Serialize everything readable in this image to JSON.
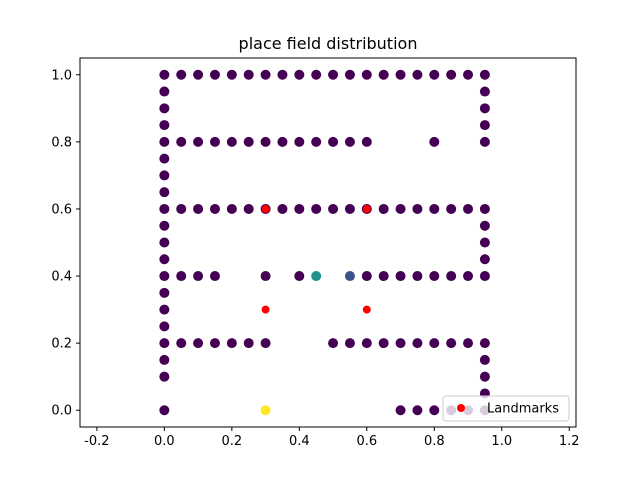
{
  "chart_data": {
    "type": "scatter",
    "title": "place field distribution",
    "xlabel": "",
    "ylabel": "",
    "xlim": [
      -0.25,
      1.22
    ],
    "ylim": [
      -0.05,
      1.05
    ],
    "xticks": [
      -0.2,
      0.0,
      0.2,
      0.4,
      0.6,
      0.8,
      1.0,
      1.2
    ],
    "yticks": [
      0.0,
      0.2,
      0.4,
      0.6,
      0.8,
      1.0
    ],
    "grid": false,
    "legend": {
      "position": "lower right",
      "entries": [
        "Landmarks"
      ]
    },
    "colors": {
      "field_low": "#440154",
      "field_mid": "#3b528b",
      "field_teal": "#21918c",
      "field_yellow": "#fde725",
      "landmark": "#ff0000"
    },
    "series": [
      {
        "marker": "place-field",
        "color_key": "field_low",
        "points": [
          [
            0.0,
            1.0
          ],
          [
            0.05,
            1.0
          ],
          [
            0.1,
            1.0
          ],
          [
            0.15,
            1.0
          ],
          [
            0.2,
            1.0
          ],
          [
            0.25,
            1.0
          ],
          [
            0.3,
            1.0
          ],
          [
            0.35,
            1.0
          ],
          [
            0.4,
            1.0
          ],
          [
            0.45,
            1.0
          ],
          [
            0.5,
            1.0
          ],
          [
            0.55,
            1.0
          ],
          [
            0.6,
            1.0
          ],
          [
            0.65,
            1.0
          ],
          [
            0.7,
            1.0
          ],
          [
            0.75,
            1.0
          ],
          [
            0.8,
            1.0
          ],
          [
            0.85,
            1.0
          ],
          [
            0.9,
            1.0
          ],
          [
            0.95,
            1.0
          ],
          [
            0.0,
            0.95
          ],
          [
            0.0,
            0.9
          ],
          [
            0.0,
            0.85
          ],
          [
            0.0,
            0.8
          ],
          [
            0.0,
            0.75
          ],
          [
            0.0,
            0.7
          ],
          [
            0.0,
            0.65
          ],
          [
            0.0,
            0.6
          ],
          [
            0.0,
            0.55
          ],
          [
            0.0,
            0.5
          ],
          [
            0.0,
            0.45
          ],
          [
            0.0,
            0.4
          ],
          [
            0.0,
            0.35
          ],
          [
            0.0,
            0.3
          ],
          [
            0.0,
            0.25
          ],
          [
            0.0,
            0.2
          ],
          [
            0.0,
            0.15
          ],
          [
            0.0,
            0.1
          ],
          [
            0.0,
            0.0
          ],
          [
            0.95,
            0.95
          ],
          [
            0.95,
            0.9
          ],
          [
            0.95,
            0.85
          ],
          [
            0.95,
            0.8
          ],
          [
            0.95,
            0.6
          ],
          [
            0.95,
            0.55
          ],
          [
            0.95,
            0.5
          ],
          [
            0.95,
            0.45
          ],
          [
            0.95,
            0.4
          ],
          [
            0.95,
            0.2
          ],
          [
            0.95,
            0.15
          ],
          [
            0.95,
            0.1
          ],
          [
            0.95,
            0.05
          ],
          [
            0.05,
            0.8
          ],
          [
            0.1,
            0.8
          ],
          [
            0.15,
            0.8
          ],
          [
            0.2,
            0.8
          ],
          [
            0.25,
            0.8
          ],
          [
            0.3,
            0.8
          ],
          [
            0.35,
            0.8
          ],
          [
            0.4,
            0.8
          ],
          [
            0.45,
            0.8
          ],
          [
            0.5,
            0.8
          ],
          [
            0.55,
            0.8
          ],
          [
            0.6,
            0.8
          ],
          [
            0.8,
            0.8
          ],
          [
            0.05,
            0.6
          ],
          [
            0.1,
            0.6
          ],
          [
            0.15,
            0.6
          ],
          [
            0.2,
            0.6
          ],
          [
            0.25,
            0.6
          ],
          [
            0.3,
            0.6
          ],
          [
            0.35,
            0.6
          ],
          [
            0.4,
            0.6
          ],
          [
            0.45,
            0.6
          ],
          [
            0.5,
            0.6
          ],
          [
            0.55,
            0.6
          ],
          [
            0.6,
            0.6
          ],
          [
            0.65,
            0.6
          ],
          [
            0.7,
            0.6
          ],
          [
            0.75,
            0.6
          ],
          [
            0.8,
            0.6
          ],
          [
            0.85,
            0.6
          ],
          [
            0.9,
            0.6
          ],
          [
            0.05,
            0.4
          ],
          [
            0.1,
            0.4
          ],
          [
            0.15,
            0.4
          ],
          [
            0.3,
            0.4
          ],
          [
            0.4,
            0.4
          ],
          [
            0.6,
            0.4
          ],
          [
            0.65,
            0.4
          ],
          [
            0.7,
            0.4
          ],
          [
            0.75,
            0.4
          ],
          [
            0.8,
            0.4
          ],
          [
            0.85,
            0.4
          ],
          [
            0.9,
            0.4
          ],
          [
            0.05,
            0.2
          ],
          [
            0.1,
            0.2
          ],
          [
            0.15,
            0.2
          ],
          [
            0.2,
            0.2
          ],
          [
            0.25,
            0.2
          ],
          [
            0.3,
            0.2
          ],
          [
            0.5,
            0.2
          ],
          [
            0.55,
            0.2
          ],
          [
            0.6,
            0.2
          ],
          [
            0.65,
            0.2
          ],
          [
            0.7,
            0.2
          ],
          [
            0.75,
            0.2
          ],
          [
            0.8,
            0.2
          ],
          [
            0.85,
            0.2
          ],
          [
            0.9,
            0.2
          ],
          [
            0.7,
            0.0
          ],
          [
            0.75,
            0.0
          ],
          [
            0.8,
            0.0
          ],
          [
            0.85,
            0.0
          ],
          [
            0.9,
            0.0
          ],
          [
            0.95,
            0.0
          ]
        ]
      },
      {
        "marker": "place-field",
        "color_key": "field_mid",
        "points": [
          [
            0.55,
            0.4
          ]
        ]
      },
      {
        "marker": "place-field",
        "color_key": "field_teal",
        "points": [
          [
            0.45,
            0.4
          ]
        ]
      },
      {
        "marker": "place-field",
        "color_key": "field_yellow",
        "points": [
          [
            0.3,
            0.0
          ]
        ]
      },
      {
        "name": "Landmarks",
        "marker": "landmark",
        "color_key": "landmark",
        "points": [
          [
            0.3,
            0.6
          ],
          [
            0.6,
            0.6
          ],
          [
            0.3,
            0.3
          ],
          [
            0.6,
            0.3
          ]
        ]
      }
    ]
  }
}
